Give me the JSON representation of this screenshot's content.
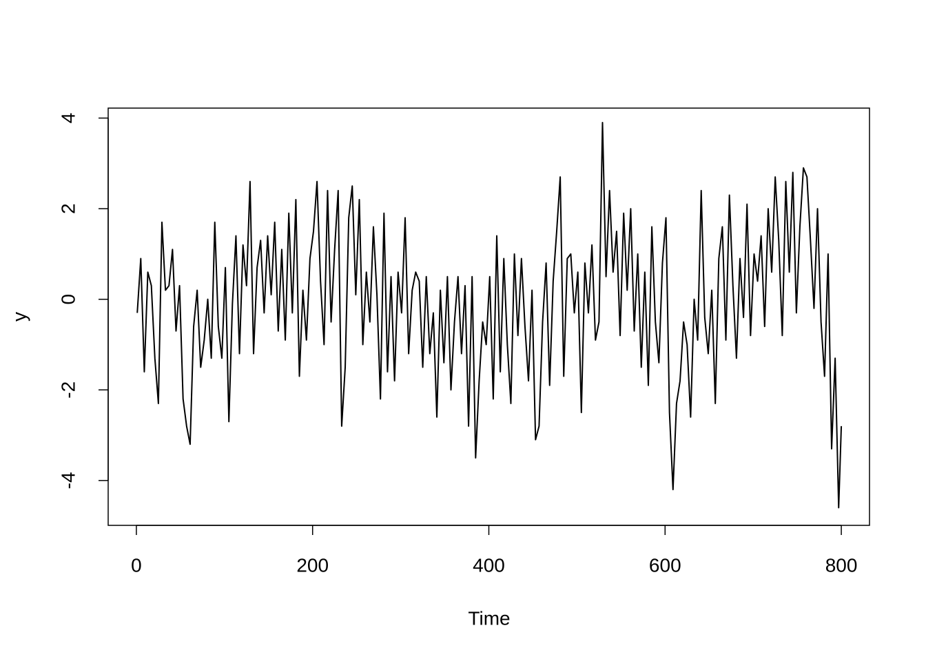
{
  "chart_data": {
    "type": "line",
    "x_label": "Time",
    "y_label": "y",
    "color": "#000000",
    "x": [
      1,
      5,
      9,
      13,
      17,
      21,
      25,
      29,
      33,
      37,
      41,
      45,
      49,
      53,
      57,
      61,
      65,
      69,
      73,
      77,
      81,
      85,
      89,
      93,
      97,
      101,
      105,
      109,
      113,
      117,
      121,
      125,
      129,
      133,
      137,
      141,
      145,
      149,
      153,
      157,
      161,
      165,
      169,
      173,
      177,
      181,
      185,
      189,
      193,
      197,
      201,
      205,
      209,
      213,
      217,
      221,
      225,
      229,
      233,
      237,
      241,
      245,
      249,
      253,
      257,
      261,
      265,
      269,
      273,
      277,
      281,
      285,
      289,
      293,
      297,
      301,
      305,
      309,
      313,
      317,
      321,
      325,
      329,
      333,
      337,
      341,
      345,
      349,
      353,
      357,
      361,
      365,
      369,
      373,
      377,
      381,
      385,
      389,
      393,
      397,
      401,
      405,
      409,
      413,
      417,
      421,
      425,
      429,
      433,
      437,
      441,
      445,
      449,
      453,
      457,
      461,
      465,
      469,
      473,
      477,
      481,
      485,
      489,
      493,
      497,
      501,
      505,
      509,
      513,
      517,
      521,
      525,
      529,
      533,
      537,
      541,
      545,
      549,
      553,
      557,
      561,
      565,
      569,
      573,
      577,
      581,
      585,
      589,
      593,
      597,
      601,
      605,
      609,
      613,
      617,
      621,
      625,
      629,
      633,
      637,
      641,
      645,
      649,
      653,
      657,
      661,
      665,
      669,
      673,
      677,
      681,
      685,
      689,
      693,
      697,
      701,
      705,
      709,
      713,
      717,
      721,
      725,
      729,
      733,
      737,
      741,
      745,
      749,
      753,
      757,
      761,
      765,
      769,
      773,
      777,
      781,
      785,
      789,
      793,
      797,
      800
    ],
    "values": [
      -0.3,
      0.9,
      -1.6,
      0.6,
      0.3,
      -1.3,
      -2.3,
      1.7,
      0.2,
      0.3,
      1.1,
      -0.7,
      0.3,
      -2.2,
      -2.8,
      -3.2,
      -0.6,
      0.2,
      -1.5,
      -0.9,
      0.0,
      -1.3,
      1.7,
      -0.6,
      -1.3,
      0.7,
      -2.7,
      -0.1,
      1.4,
      -1.2,
      1.2,
      0.3,
      2.6,
      -1.2,
      0.7,
      1.3,
      -0.3,
      1.4,
      0.1,
      1.7,
      -0.7,
      1.1,
      -0.9,
      1.9,
      -0.3,
      2.2,
      -1.7,
      0.2,
      -0.9,
      0.9,
      1.5,
      2.6,
      0.4,
      -1.0,
      2.4,
      -0.5,
      1.1,
      2.4,
      -2.8,
      -1.5,
      1.8,
      2.5,
      0.1,
      2.2,
      -1.0,
      0.6,
      -0.5,
      1.6,
      0.1,
      -2.2,
      1.9,
      -1.6,
      0.5,
      -1.8,
      0.6,
      -0.3,
      1.8,
      -1.2,
      0.2,
      0.6,
      0.4,
      -1.5,
      0.5,
      -1.2,
      -0.3,
      -2.6,
      0.2,
      -1.4,
      0.5,
      -2.0,
      -0.5,
      0.5,
      -1.2,
      0.3,
      -2.8,
      0.5,
      -3.5,
      -1.8,
      -0.5,
      -1.0,
      0.5,
      -2.2,
      1.4,
      -1.6,
      0.9,
      -1.0,
      -2.3,
      1.0,
      -0.8,
      0.9,
      -0.6,
      -1.8,
      0.2,
      -3.1,
      -2.8,
      -0.5,
      0.8,
      -1.9,
      0.4,
      1.5,
      2.7,
      -1.7,
      0.9,
      1.0,
      -0.3,
      0.6,
      -2.5,
      0.8,
      -0.3,
      1.2,
      -0.9,
      -0.5,
      3.9,
      0.5,
      2.4,
      0.6,
      1.5,
      -0.8,
      1.9,
      0.2,
      2.0,
      -0.7,
      1.0,
      -1.5,
      0.6,
      -1.9,
      1.6,
      -0.5,
      -1.4,
      0.8,
      1.8,
      -2.5,
      -4.2,
      -2.3,
      -1.8,
      -0.5,
      -1.0,
      -2.6,
      0.0,
      -0.9,
      2.4,
      -0.4,
      -1.2,
      0.2,
      -2.3,
      0.9,
      1.6,
      -0.9,
      2.3,
      0.3,
      -1.3,
      0.9,
      -0.4,
      2.1,
      -0.8,
      1.0,
      0.4,
      1.4,
      -0.6,
      2.0,
      0.6,
      2.7,
      1.3,
      -0.8,
      2.6,
      0.6,
      2.8,
      -0.3,
      1.6,
      2.9,
      2.7,
      1.3,
      -0.2,
      2.0,
      -0.5,
      -1.7,
      1.0,
      -3.3,
      -1.3,
      -4.6,
      -2.8
    ],
    "xlim": [
      -32,
      832
    ],
    "ylim": [
      -4.99,
      4.22
    ],
    "xticks": [
      0,
      200,
      400,
      600,
      800
    ],
    "yticks": [
      -4,
      -2,
      0,
      2,
      4
    ]
  }
}
